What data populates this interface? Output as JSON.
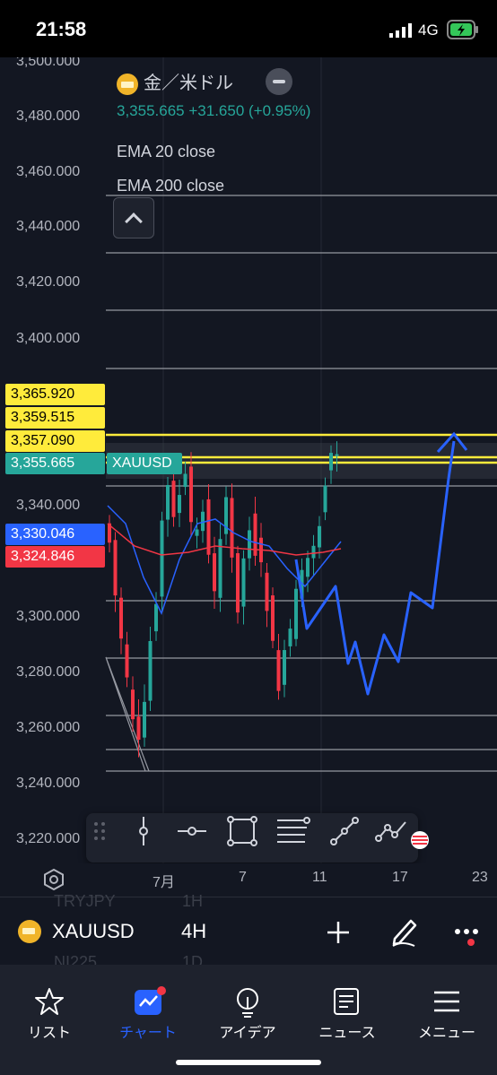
{
  "status_bar": {
    "time": "21:58",
    "network": "4G"
  },
  "legend": {
    "symbol_name": "金／米ドル",
    "price_line": "3,355.665  +31.650 (+0.95%)",
    "ema1": "EMA 20 close",
    "ema2": "EMA 200 close"
  },
  "y_axis_labels": [
    "3,500.000",
    "3,480.000",
    "3,460.000",
    "3,440.000",
    "3,420.000",
    "3,400.000",
    "3,340.000",
    "3,300.000",
    "3,280.000",
    "3,260.000",
    "3,240.000",
    "3,220.000"
  ],
  "price_tags": [
    {
      "value": "3,365.920",
      "color": "#ffeb3b",
      "text_color": "#000000"
    },
    {
      "value": "3,359.515",
      "color": "#ffeb3b",
      "text_color": "#000000"
    },
    {
      "value": "3,357.090",
      "color": "#ffeb3b",
      "text_color": "#000000"
    },
    {
      "value": "3,355.665",
      "color": "#26a69a",
      "text_color": "#ffffff"
    },
    {
      "value": "3,330.046",
      "color": "#2962ff",
      "text_color": "#ffffff"
    },
    {
      "value": "3,324.846",
      "color": "#f23645",
      "text_color": "#ffffff"
    }
  ],
  "symbol_tag": "XAUUSD",
  "x_axis_labels": [
    "7月",
    "7",
    "11",
    "17",
    "23"
  ],
  "toolbar_icons": [
    "drag-handle-icon",
    "vertical-line-icon",
    "horizontal-ray-icon",
    "rectangle-icon",
    "fib-retracement-icon",
    "trend-line-icon",
    "path-icon"
  ],
  "bottom": {
    "symbol": "XAUUSD",
    "interval": "4H",
    "ghost_symbol_1": "TRYJPY",
    "ghost_interval_1": "1H",
    "ghost_symbol_2": "NI225",
    "ghost_interval_2": "1D"
  },
  "tabs": [
    {
      "label": "リスト",
      "icon": "star-icon"
    },
    {
      "label": "チャート",
      "icon": "chart-icon",
      "active": true
    },
    {
      "label": "アイデア",
      "icon": "lightbulb-icon"
    },
    {
      "label": "ニュース",
      "icon": "news-icon"
    },
    {
      "label": "メニュー",
      "icon": "menu-icon"
    }
  ],
  "colors": {
    "up": "#26a69a",
    "down": "#f23645",
    "ema20": "#2962ff",
    "ema200": "#f23645",
    "accent": "#2962ff",
    "yellow": "#ffeb3b"
  }
}
